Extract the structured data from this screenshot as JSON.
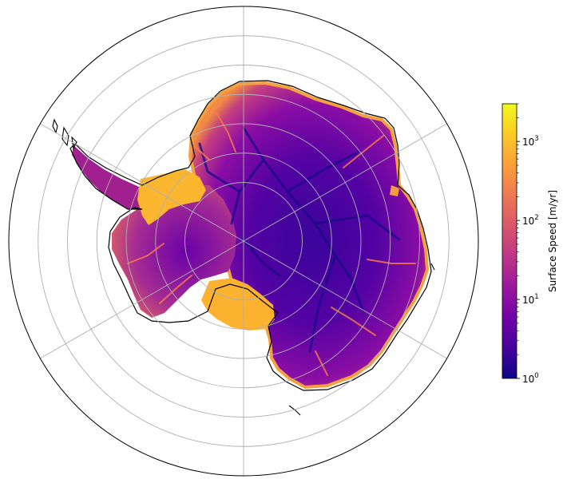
{
  "map": {
    "projection": "south-polar-stereographic",
    "graticule": {
      "latitude_circles_deg": [
        -80,
        -75,
        -70,
        -65,
        -60,
        -55
      ],
      "meridians_deg": [
        0,
        60,
        120,
        180,
        240,
        300
      ]
    }
  },
  "colorbar": {
    "label": "Surface Speed [m/yr]",
    "colormap": "plasma",
    "scale": "log",
    "min_value": 1,
    "max_value": 3000,
    "ticks": [
      {
        "value": 1,
        "base": "10",
        "exp": "0"
      },
      {
        "value": 10,
        "base": "10",
        "exp": "1"
      },
      {
        "value": 100,
        "base": "10",
        "exp": "2"
      },
      {
        "value": 1000,
        "base": "10",
        "exp": "3"
      }
    ]
  },
  "colors": {
    "coastline": "#000000",
    "gridline": "#b0b0b0",
    "frame": "#000000",
    "plasma": [
      "#0d0887",
      "#46039f",
      "#7201a8",
      "#9c179e",
      "#bd3786",
      "#d8576b",
      "#ed7953",
      "#fb9f3a",
      "#fdca26",
      "#f0f921"
    ]
  }
}
